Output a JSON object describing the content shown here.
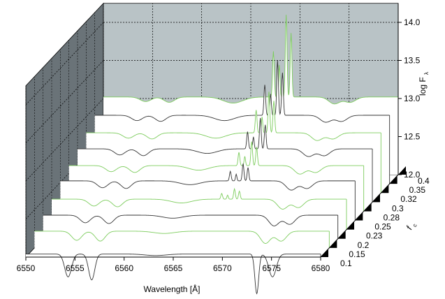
{
  "chart_data": {
    "type": "line",
    "subtype": "3d-waterfall",
    "xlabel": "Wavelength [Å]",
    "ylabel": "log F",
    "ylabel_subscript": "λ",
    "zlabel": "f",
    "zlabel_subscript": "c",
    "xlim": [
      6550,
      6580
    ],
    "ylim": [
      12.0,
      14.25
    ],
    "x_ticks": [
      6550,
      6555,
      6560,
      6565,
      6570,
      6575,
      6580
    ],
    "y_ticks": [
      12.0,
      12.5,
      13.0,
      13.5,
      14.0
    ],
    "y_tick_labels": [
      "12.0",
      "12.5",
      "13.0",
      "13.5",
      "14.0"
    ],
    "z_ticks": [
      "0.1",
      "0.15",
      "0.2",
      "0.23",
      "0.25",
      "0.28",
      "0.3",
      "0.32",
      "0.35",
      "0.4"
    ],
    "grid": true,
    "colors": {
      "dark": "#333333",
      "green": "#7ccc5c",
      "back_wall": "#b9c3c6",
      "side_wall": "#6a7378"
    },
    "series": [
      {
        "z": "0.1",
        "color": "dark",
        "continuum": 12.04,
        "line_depths": [
          0.3,
          0.34,
          0.02,
          0.52,
          0.3
        ],
        "emission": 0.0
      },
      {
        "z": "0.15",
        "color": "green",
        "continuum": 12.22,
        "line_depths": [
          0.12,
          0.13,
          0.03,
          0.16,
          0.13
        ],
        "emission": 0.0
      },
      {
        "z": "0.2",
        "color": "dark",
        "continuum": 12.31,
        "line_depths": [
          0.1,
          0.11,
          0.04,
          0.14,
          0.12
        ],
        "emission": 0.0
      },
      {
        "z": "0.23",
        "color": "green",
        "continuum": 12.4,
        "line_depths": [
          0.09,
          0.1,
          0.05,
          0.13,
          0.11
        ],
        "emission": 0.15
      },
      {
        "z": "0.25",
        "color": "dark",
        "continuum": 12.52,
        "line_depths": [
          0.09,
          0.1,
          0.05,
          0.12,
          0.1
        ],
        "emission": 0.25
      },
      {
        "z": "0.28",
        "color": "green",
        "continuum": 12.6,
        "line_depths": [
          0.08,
          0.09,
          0.06,
          0.11,
          0.09
        ],
        "emission": 0.35
      },
      {
        "z": "0.3",
        "color": "dark",
        "continuum": 12.7,
        "line_depths": [
          0.08,
          0.09,
          0.06,
          0.1,
          0.09
        ],
        "emission": 0.45
      },
      {
        "z": "0.32",
        "color": "green",
        "continuum": 12.79,
        "line_depths": [
          0.07,
          0.08,
          0.07,
          0.1,
          0.08
        ],
        "emission": 0.6
      },
      {
        "z": "0.35",
        "color": "dark",
        "continuum": 12.9,
        "line_depths": [
          0.07,
          0.08,
          0.07,
          0.09,
          0.08
        ],
        "emission": 0.8
      },
      {
        "z": "0.4",
        "color": "green",
        "continuum": 13.02,
        "line_depths": [
          0.06,
          0.07,
          0.08,
          0.09,
          0.07
        ],
        "emission": 1.2
      }
    ]
  }
}
